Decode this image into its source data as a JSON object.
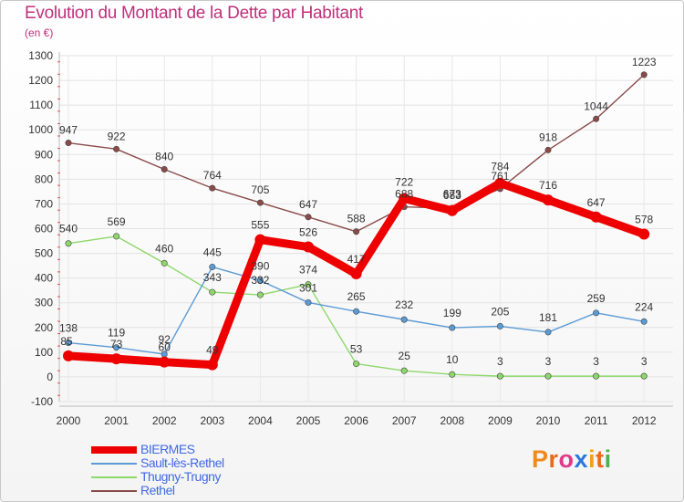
{
  "header": {
    "title": "Evolution du Montant de la Dette par Habitant",
    "subtitle": "(en €)"
  },
  "logo": {
    "text": "Proxiti",
    "letters": [
      "P",
      "r",
      "o",
      "x",
      "i",
      "t",
      "i"
    ],
    "colors": [
      "#f08a1c",
      "#e86a1c",
      "#e03a8a",
      "#2a78d8",
      "#f0a020",
      "#e86a1c",
      "#4caf50"
    ]
  },
  "chart_data": {
    "type": "line",
    "title": "Evolution du Montant de la Dette par Habitant",
    "subtitle": "(en €)",
    "x": [
      "2000",
      "2001",
      "2002",
      "2003",
      "2004",
      "2005",
      "2006",
      "2007",
      "2008",
      "2009",
      "2010",
      "2011",
      "2012"
    ],
    "ylim": [
      -100,
      1300
    ],
    "yticks": [
      -100,
      0,
      100,
      200,
      300,
      400,
      500,
      600,
      700,
      800,
      900,
      1000,
      1100,
      1200,
      1300
    ],
    "grid": true,
    "legend_position": "bottom-left",
    "series": [
      {
        "name": "BIERMES",
        "color": "#ee0000",
        "values": [
          85,
          73,
          60,
          49,
          555,
          526,
          417,
          722,
          673,
          784,
          716,
          647,
          578
        ],
        "labels": [
          "85",
          "73",
          "60",
          "49",
          "555",
          "526",
          "417",
          "722",
          "673",
          "784",
          "716",
          "647",
          "578"
        ]
      },
      {
        "name": "Sault-lès-Rethel",
        "color": "#5b9bd5",
        "values": [
          138,
          119,
          92,
          445,
          390,
          301,
          265,
          232,
          199,
          205,
          181,
          259,
          224
        ],
        "labels": [
          "138",
          "119",
          "92",
          "445",
          "390",
          "301",
          "265",
          "232",
          "199",
          "205",
          "181",
          "259",
          "224"
        ]
      },
      {
        "name": "Thugny-Trugny",
        "color": "#8ed86b",
        "values": [
          540,
          569,
          460,
          343,
          332,
          374,
          53,
          25,
          10,
          3,
          3,
          3,
          3
        ],
        "labels": [
          "540",
          "569",
          "460",
          "343",
          "332",
          "374",
          "53",
          "25",
          "10",
          "3",
          "3",
          "3",
          "3"
        ]
      },
      {
        "name": "Rethel",
        "color": "#8b4a4a",
        "values": [
          947,
          922,
          840,
          764,
          705,
          647,
          588,
          688,
          683,
          761,
          918,
          1044,
          1223
        ],
        "labels": [
          "947",
          "922",
          "840",
          "764",
          "705",
          "647",
          "588",
          "688",
          "683",
          "761",
          "918",
          "1044",
          "1223"
        ]
      }
    ]
  }
}
